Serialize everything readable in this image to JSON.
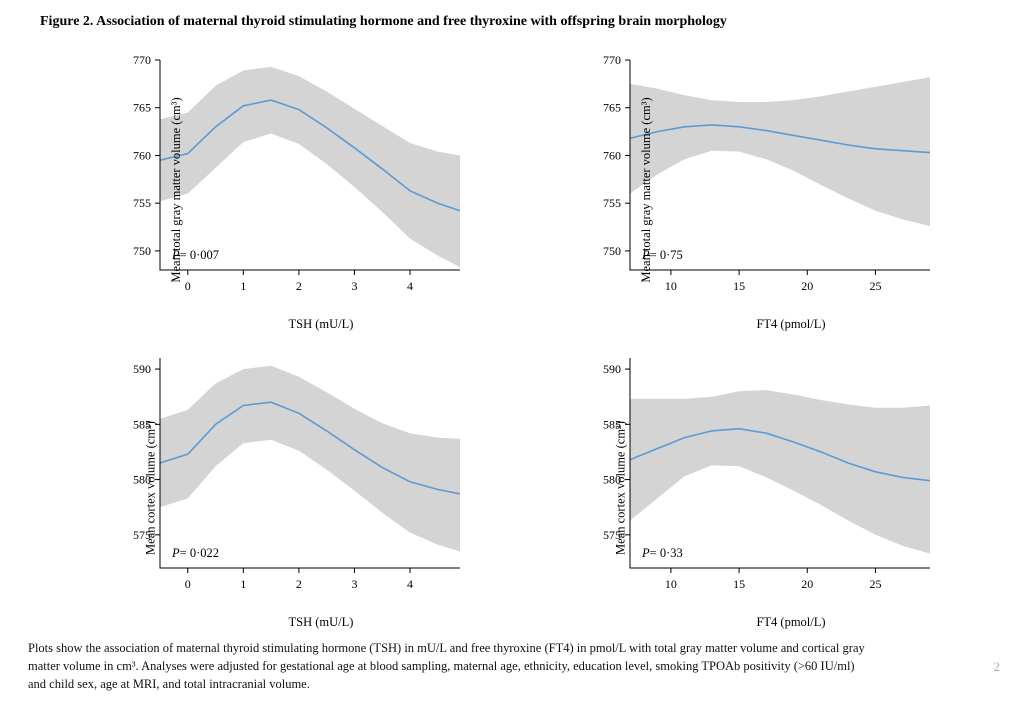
{
  "title": "Figure 2. Association of maternal thyroid stimulating hormone and free thyroxine with offspring brain morphology",
  "caption_line1": "Plots show the association of maternal thyroid stimulating hormone (TSH) in mU/L and free thyroxine (FT4) in pmol/L with total gray matter volume and cortical gray",
  "caption_line2": "matter volume in cm³. Analyses were adjusted for gestational age at blood sampling, maternal age, ethnicity, education level, smoking TPOAb positivity (>60 IU/ml)",
  "caption_line3": "and child sex, age at MRI, and total intracranial volume.",
  "page_number": "2",
  "styling": {
    "line_color": "#5b9bd5",
    "line_width": 1.6,
    "ci_fill": "#cccccc",
    "ci_opacity": 0.85,
    "axis_color": "#000000",
    "axis_width": 1.0,
    "background": "#ffffff",
    "font_family": "Times New Roman",
    "tick_fontsize": 12,
    "label_fontsize": 12.5,
    "title_fontsize": 14
  },
  "panels": {
    "tl": {
      "ylabel": "Mean total gray matter volume (cm³)",
      "xlabel": "TSH (mU/L)",
      "pvalue": "P= 0·007",
      "xlim": [
        -0.5,
        4.9
      ],
      "ylim": [
        748,
        770
      ],
      "xticks": [
        0,
        1,
        2,
        3,
        4
      ],
      "yticks": [
        750,
        755,
        760,
        765,
        770
      ],
      "line": [
        [
          -0.5,
          759.5
        ],
        [
          0,
          760.2
        ],
        [
          0.5,
          763.0
        ],
        [
          1.0,
          765.2
        ],
        [
          1.5,
          765.8
        ],
        [
          2.0,
          764.8
        ],
        [
          2.5,
          762.9
        ],
        [
          3.0,
          760.8
        ],
        [
          3.5,
          758.6
        ],
        [
          4.0,
          756.3
        ],
        [
          4.5,
          755.0
        ],
        [
          4.9,
          754.2
        ]
      ],
      "upper": [
        [
          -0.5,
          763.8
        ],
        [
          0,
          764.5
        ],
        [
          0.5,
          767.3
        ],
        [
          1.0,
          768.9
        ],
        [
          1.5,
          769.3
        ],
        [
          2.0,
          768.3
        ],
        [
          2.5,
          766.7
        ],
        [
          3.0,
          764.9
        ],
        [
          3.5,
          763.1
        ],
        [
          4.0,
          761.3
        ],
        [
          4.5,
          760.4
        ],
        [
          4.9,
          760.0
        ]
      ],
      "lower": [
        [
          -0.5,
          755.2
        ],
        [
          0,
          756.0
        ],
        [
          0.5,
          758.7
        ],
        [
          1.0,
          761.4
        ],
        [
          1.5,
          762.3
        ],
        [
          2.0,
          761.2
        ],
        [
          2.5,
          759.1
        ],
        [
          3.0,
          756.7
        ],
        [
          3.5,
          754.1
        ],
        [
          4.0,
          751.3
        ],
        [
          4.5,
          749.5
        ],
        [
          4.9,
          748.3
        ]
      ]
    },
    "tr": {
      "ylabel": "Mean total gray matter volume (cm³)",
      "xlabel": "FT4 (pmol/L)",
      "pvalue": "P= 0·75",
      "xlim": [
        7,
        29
      ],
      "ylim": [
        748,
        770
      ],
      "xticks": [
        10,
        15,
        20,
        25
      ],
      "yticks": [
        750,
        755,
        760,
        765,
        770
      ],
      "line": [
        [
          7,
          761.8
        ],
        [
          9,
          762.5
        ],
        [
          11,
          763.0
        ],
        [
          13,
          763.2
        ],
        [
          15,
          763.0
        ],
        [
          17,
          762.6
        ],
        [
          19,
          762.1
        ],
        [
          21,
          761.6
        ],
        [
          23,
          761.1
        ],
        [
          25,
          760.7
        ],
        [
          27,
          760.5
        ],
        [
          29,
          760.3
        ]
      ],
      "upper": [
        [
          7,
          767.5
        ],
        [
          9,
          767.0
        ],
        [
          11,
          766.3
        ],
        [
          13,
          765.8
        ],
        [
          15,
          765.6
        ],
        [
          17,
          765.6
        ],
        [
          19,
          765.8
        ],
        [
          21,
          766.2
        ],
        [
          23,
          766.7
        ],
        [
          25,
          767.2
        ],
        [
          27,
          767.7
        ],
        [
          29,
          768.2
        ]
      ],
      "lower": [
        [
          7,
          756.0
        ],
        [
          9,
          758.0
        ],
        [
          11,
          759.6
        ],
        [
          13,
          760.5
        ],
        [
          15,
          760.4
        ],
        [
          17,
          759.6
        ],
        [
          19,
          758.4
        ],
        [
          21,
          756.9
        ],
        [
          23,
          755.5
        ],
        [
          25,
          754.2
        ],
        [
          27,
          753.3
        ],
        [
          29,
          752.6
        ]
      ]
    },
    "bl": {
      "ylabel": "Mean cortex volume (cm³)",
      "xlabel": "TSH (mU/L)",
      "pvalue": "P= 0·022",
      "xlim": [
        -0.5,
        4.9
      ],
      "ylim": [
        572,
        591
      ],
      "xticks": [
        0,
        1,
        2,
        3,
        4
      ],
      "yticks": [
        575,
        580,
        585,
        590
      ],
      "line": [
        [
          -0.5,
          581.5
        ],
        [
          0,
          582.3
        ],
        [
          0.5,
          585.0
        ],
        [
          1.0,
          586.7
        ],
        [
          1.5,
          587.0
        ],
        [
          2.0,
          586.0
        ],
        [
          2.5,
          584.4
        ],
        [
          3.0,
          582.7
        ],
        [
          3.5,
          581.1
        ],
        [
          4.0,
          579.8
        ],
        [
          4.5,
          579.1
        ],
        [
          4.9,
          578.7
        ]
      ],
      "upper": [
        [
          -0.5,
          585.5
        ],
        [
          0,
          586.3
        ],
        [
          0.5,
          588.7
        ],
        [
          1.0,
          590.0
        ],
        [
          1.5,
          590.3
        ],
        [
          2.0,
          589.3
        ],
        [
          2.5,
          587.9
        ],
        [
          3.0,
          586.4
        ],
        [
          3.5,
          585.1
        ],
        [
          4.0,
          584.2
        ],
        [
          4.5,
          583.8
        ],
        [
          4.9,
          583.7
        ]
      ],
      "lower": [
        [
          -0.5,
          577.5
        ],
        [
          0,
          578.3
        ],
        [
          0.5,
          581.2
        ],
        [
          1.0,
          583.3
        ],
        [
          1.5,
          583.6
        ],
        [
          2.0,
          582.6
        ],
        [
          2.5,
          580.9
        ],
        [
          3.0,
          579.0
        ],
        [
          3.5,
          577.0
        ],
        [
          4.0,
          575.2
        ],
        [
          4.5,
          574.1
        ],
        [
          4.9,
          573.5
        ]
      ]
    },
    "br": {
      "ylabel": "Mean cortex volume (cm³)",
      "xlabel": "FT4 (pmol/L)",
      "pvalue": "P= 0·33",
      "xlim": [
        7,
        29
      ],
      "ylim": [
        572,
        591
      ],
      "xticks": [
        10,
        15,
        20,
        25
      ],
      "yticks": [
        575,
        580,
        585,
        590
      ],
      "line": [
        [
          7,
          581.8
        ],
        [
          9,
          582.8
        ],
        [
          11,
          583.8
        ],
        [
          13,
          584.4
        ],
        [
          15,
          584.6
        ],
        [
          17,
          584.2
        ],
        [
          19,
          583.4
        ],
        [
          21,
          582.5
        ],
        [
          23,
          581.5
        ],
        [
          25,
          580.7
        ],
        [
          27,
          580.2
        ],
        [
          29,
          579.9
        ]
      ],
      "upper": [
        [
          7,
          587.3
        ],
        [
          9,
          587.3
        ],
        [
          11,
          587.3
        ],
        [
          13,
          587.5
        ],
        [
          15,
          588.0
        ],
        [
          17,
          588.1
        ],
        [
          19,
          587.7
        ],
        [
          21,
          587.2
        ],
        [
          23,
          586.8
        ],
        [
          25,
          586.5
        ],
        [
          27,
          586.5
        ],
        [
          29,
          586.7
        ]
      ],
      "lower": [
        [
          7,
          576.3
        ],
        [
          9,
          578.3
        ],
        [
          11,
          580.3
        ],
        [
          13,
          581.3
        ],
        [
          15,
          581.2
        ],
        [
          17,
          580.2
        ],
        [
          19,
          579.0
        ],
        [
          21,
          577.7
        ],
        [
          23,
          576.3
        ],
        [
          25,
          575.0
        ],
        [
          27,
          574.0
        ],
        [
          29,
          573.3
        ]
      ]
    }
  }
}
